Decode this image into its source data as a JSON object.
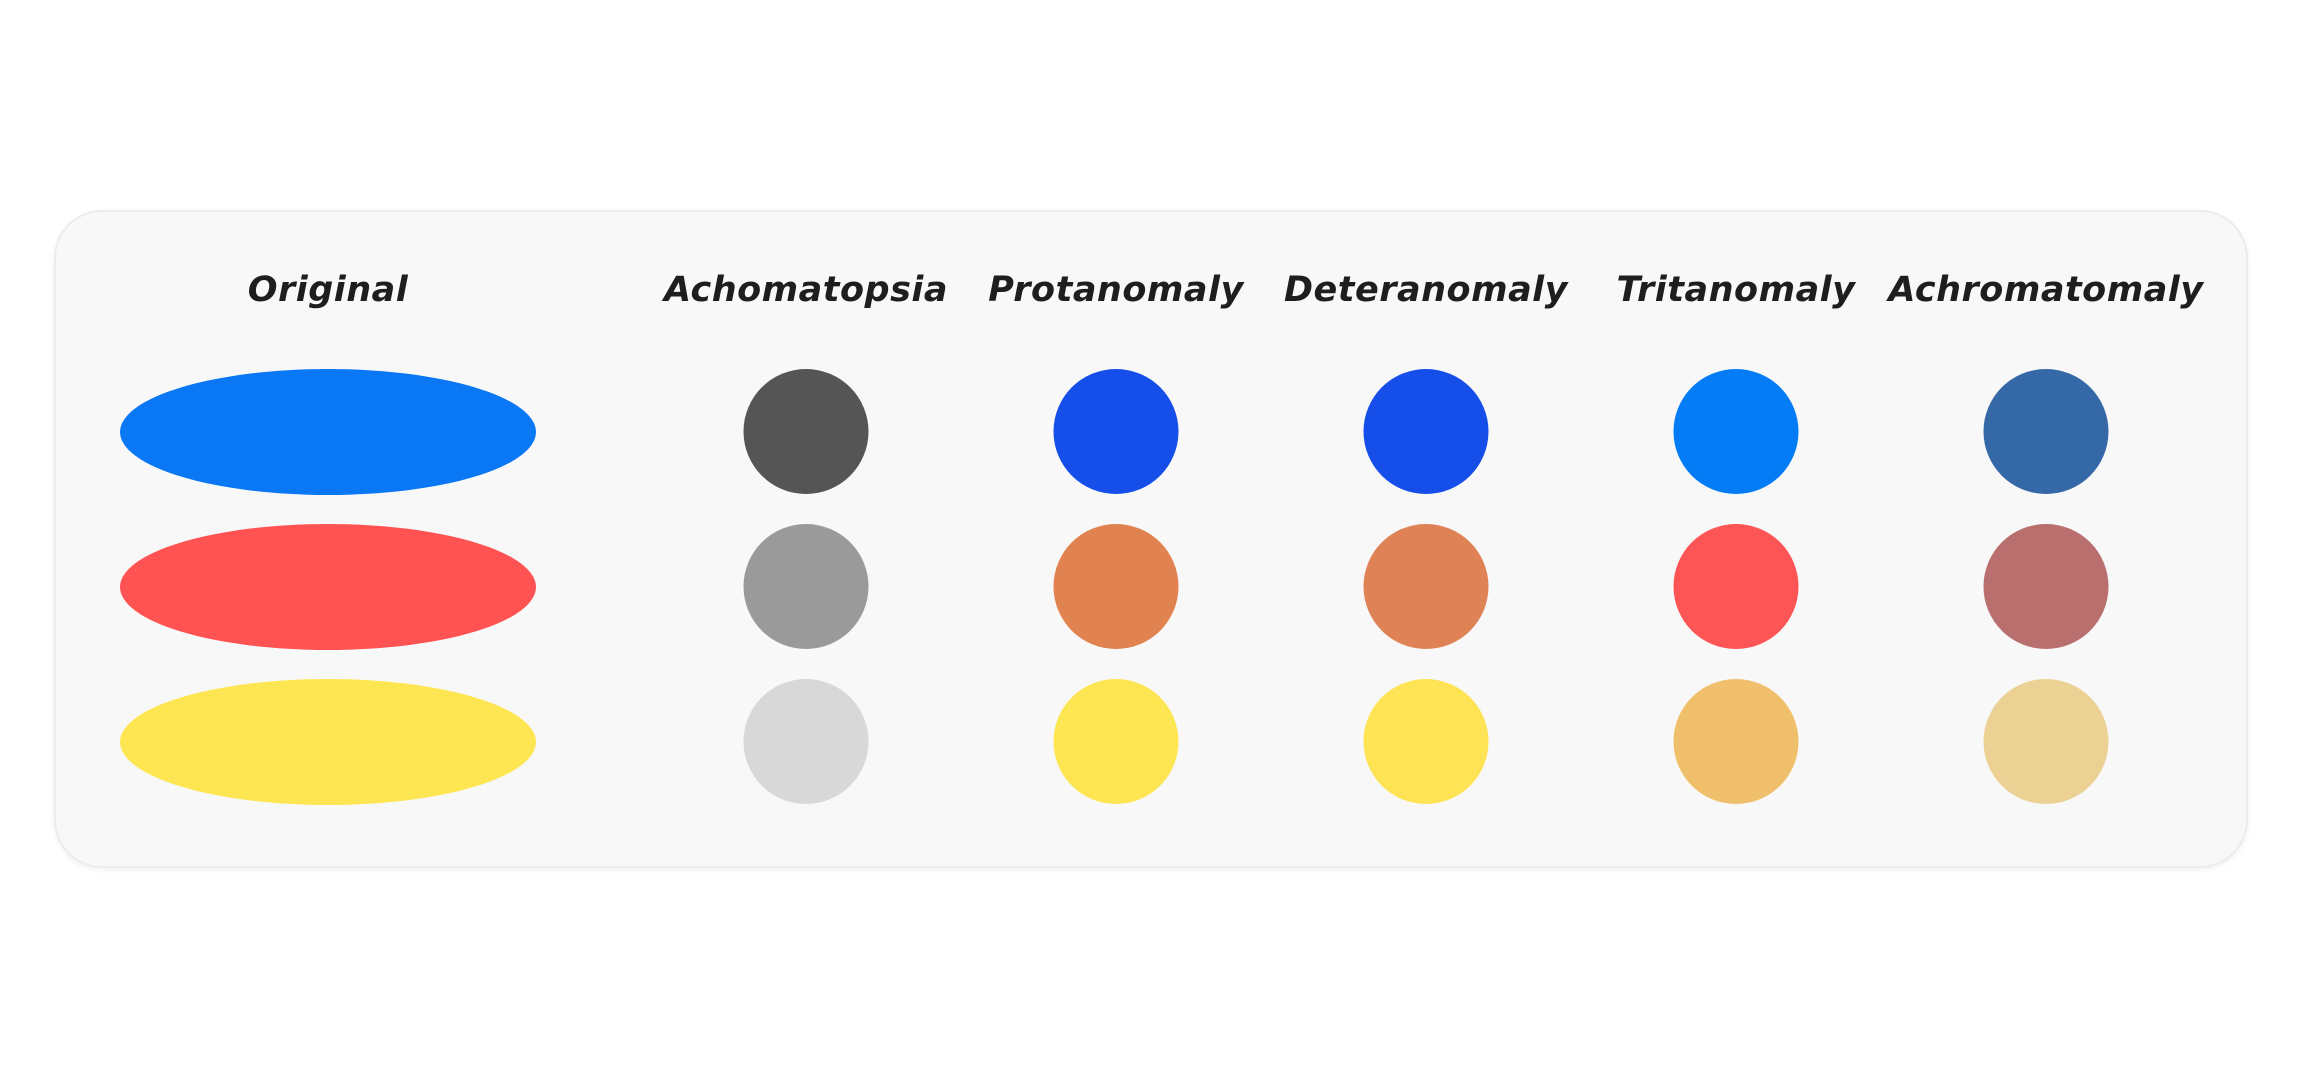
{
  "columns": [
    {
      "label": "Original",
      "shape": "ellipse",
      "colors": [
        "#0a78f5",
        "#ff5353",
        "#fee653"
      ]
    },
    {
      "label": "Achomatopsia",
      "shape": "circle",
      "colors": [
        "#555555",
        "#999a99",
        "#d8d8d8"
      ]
    },
    {
      "label": "Protanomaly",
      "shape": "circle",
      "colors": [
        "#154ee9",
        "#e08350",
        "#fee653"
      ]
    },
    {
      "label": "Deteranomaly",
      "shape": "circle",
      "colors": [
        "#154ee9",
        "#df8256",
        "#fee455"
      ]
    },
    {
      "label": "Tritanomaly",
      "shape": "circle",
      "colors": [
        "#037cf6",
        "#fd5455",
        "#efbf6b"
      ]
    },
    {
      "label": "Achromatomaly",
      "shape": "circle",
      "colors": [
        "#3568a6",
        "#ba6f6f",
        "#ecd195"
      ]
    }
  ]
}
